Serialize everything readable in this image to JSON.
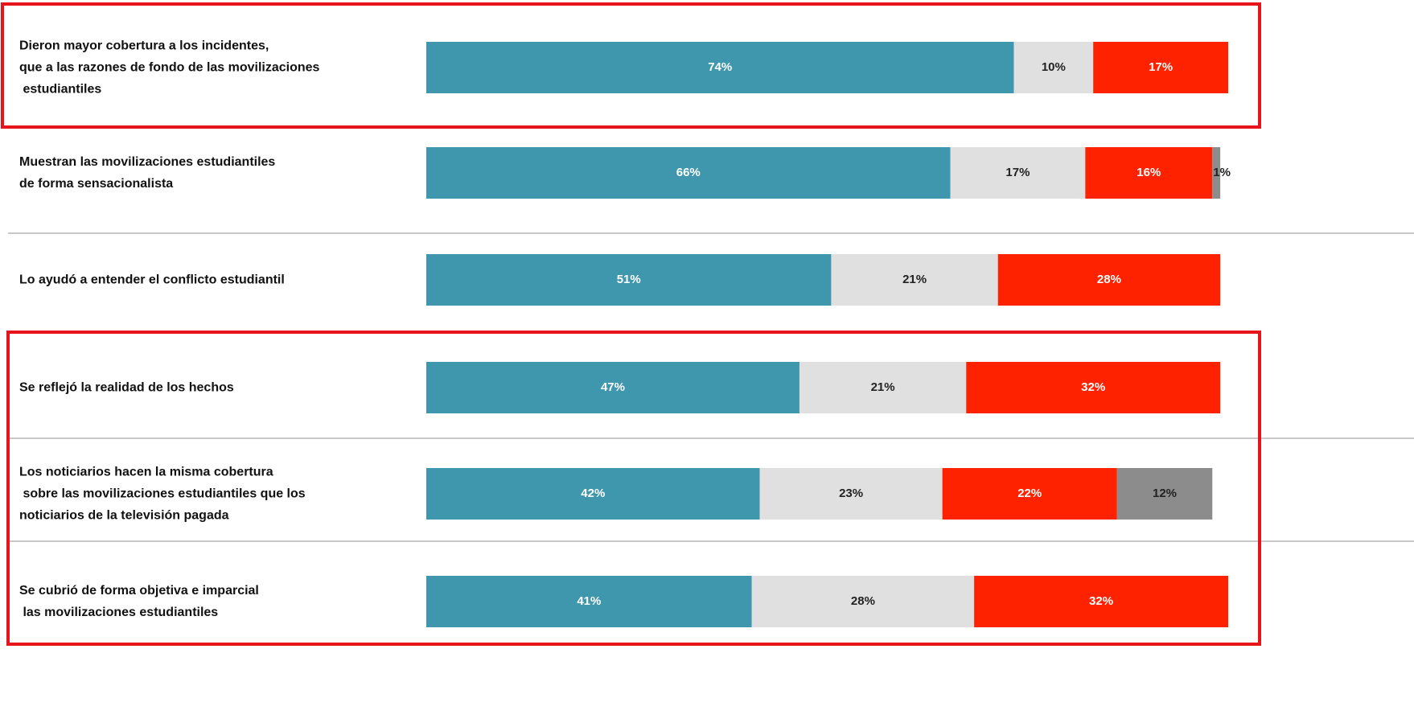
{
  "chart_data": {
    "type": "stacked-bar",
    "categories": [
      "Dieron mayor cobertura a los incidentes,\nque a las razones de fondo de las movilizaciones\n estudiantiles",
      "Muestran las movilizaciones estudiantiles\nde forma sensacionalista",
      "Lo ayudó a entender el conflicto estudiantil",
      "Se reflejó la realidad de los hechos",
      "Los noticiarios hacen la misma cobertura\n sobre las movilizaciones estudiantiles que los\nnoticiarios de la televisión pagada",
      "Se cubrió de forma objetiva e imparcial\n las movilizaciones estudiantiles"
    ],
    "series": [
      {
        "color": "#3f97ad",
        "values": [
          74,
          66,
          51,
          47,
          42,
          41
        ],
        "value_labels": [
          "74%",
          "66%",
          "51%",
          "47%",
          "42%",
          "41%"
        ]
      },
      {
        "color": "#e0e0e0",
        "values": [
          10,
          17,
          21,
          21,
          23,
          28
        ],
        "value_labels": [
          "10%",
          "17%",
          "21%",
          "21%",
          "23%",
          "28%"
        ]
      },
      {
        "color": "#ff2200",
        "values": [
          17,
          16,
          28,
          32,
          22,
          32
        ],
        "value_labels": [
          "17%",
          "16%",
          "28%",
          "32%",
          "22%",
          "32%"
        ]
      },
      {
        "color": "#8c8c8c",
        "values": [
          null,
          1,
          null,
          null,
          12,
          null
        ],
        "value_labels": [
          null,
          "1%",
          null,
          null,
          "12%",
          null
        ]
      }
    ]
  }
}
